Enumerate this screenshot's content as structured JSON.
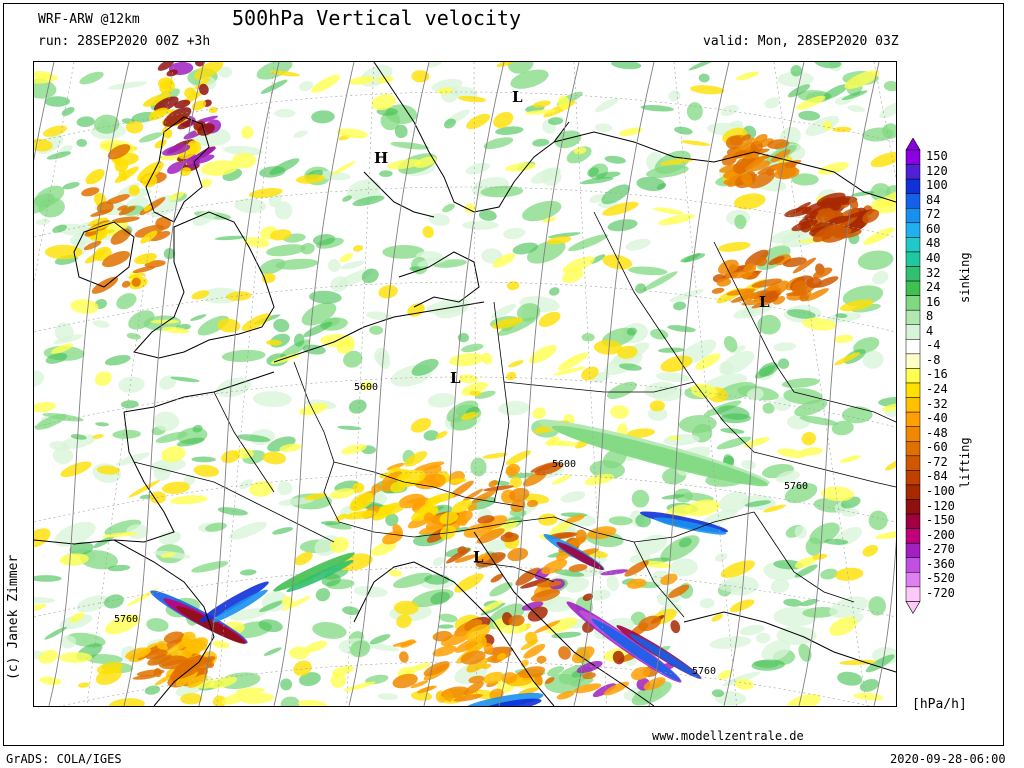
{
  "header": {
    "model": "WRF-ARW @12km",
    "title": "500hPa Vertical velocity",
    "run": "run: 28SEP2020 00Z +3h",
    "valid": "valid: Mon, 28SEP2020 03Z"
  },
  "footer": {
    "author": "(c) Janek Zimmer",
    "website": "www.modellzentrale.de",
    "software": "GrADS: COLA/IGES",
    "timestamp": "2020-09-28-06:00"
  },
  "legend": {
    "units": "[hPa/h]",
    "sinking_label": "sinking",
    "lifting_label": "lifting",
    "levels": [
      "150",
      "120",
      "100",
      "84",
      "72",
      "60",
      "48",
      "40",
      "32",
      "24",
      "16",
      "8",
      "4",
      "-4",
      "-8",
      "-16",
      "-24",
      "-32",
      "-40",
      "-48",
      "-60",
      "-72",
      "-84",
      "-100",
      "-120",
      "-150",
      "-200",
      "-270",
      "-360",
      "-520",
      "-720"
    ],
    "colors": [
      "#8a00e0",
      "#5020d8",
      "#1030d8",
      "#1460e8",
      "#1890f0",
      "#20b0f0",
      "#20c8c8",
      "#20c8a0",
      "#30c070",
      "#40c050",
      "#80d880",
      "#b0e8b0",
      "#d8f4d8",
      "#ffffff",
      "#ffffc8",
      "#ffff50",
      "#ffe000",
      "#ffc000",
      "#ffa000",
      "#f08800",
      "#e07000",
      "#d05800",
      "#c04000",
      "#a82800",
      "#901010",
      "#a00040",
      "#c0007a",
      "#a020c0",
      "#c050e0",
      "#e080f0",
      "#ffc8f8"
    ]
  },
  "map": {
    "pressure_centers": [
      {
        "label": "L"
      },
      {
        "label": "H"
      },
      {
        "label": "L"
      },
      {
        "label": "L"
      },
      {
        "label": "L"
      }
    ],
    "isohypse_labels": [
      "5600",
      "5600",
      "5760",
      "5760",
      "5760"
    ]
  }
}
